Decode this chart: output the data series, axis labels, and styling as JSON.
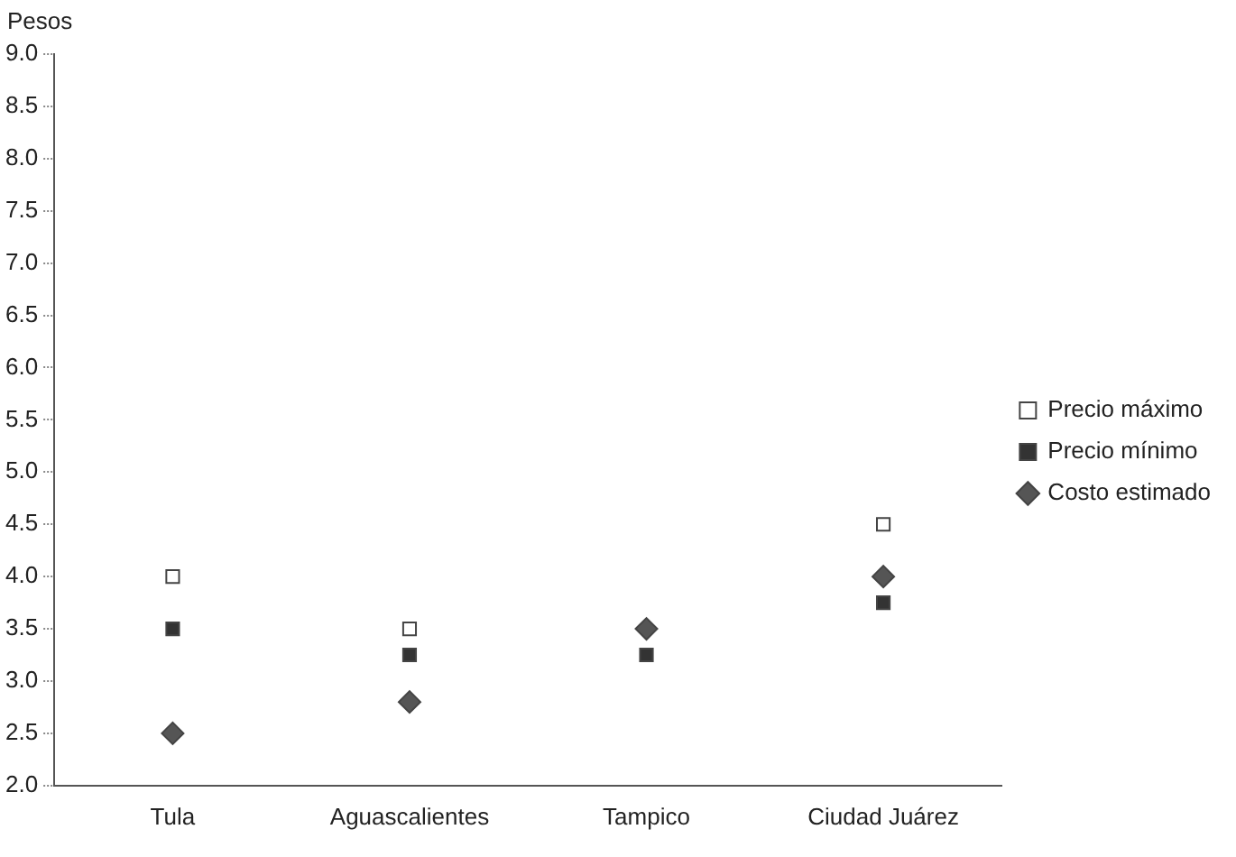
{
  "chart_data": {
    "type": "scatter",
    "ylabel": "Pesos",
    "categories": [
      "Tula",
      "Aguascalientes",
      "Tampico",
      "Ciudad Juárez"
    ],
    "series": [
      {
        "name": "Precio máximo",
        "color": "#ffffff",
        "marker": "square",
        "values": [
          4.0,
          3.5,
          null,
          4.5
        ]
      },
      {
        "name": "Precio mínimo",
        "color": "#333333",
        "marker": "square",
        "values": [
          3.5,
          3.25,
          3.25,
          3.75
        ]
      },
      {
        "name": "Costo estimado",
        "color": "#555555",
        "marker": "diamond",
        "values": [
          2.5,
          2.8,
          3.5,
          4.0
        ]
      }
    ],
    "ylim": [
      2,
      9
    ],
    "yticks": [
      {
        "value": 2,
        "label": "2.0"
      },
      {
        "value": 2.5,
        "label": "2.5"
      },
      {
        "value": 3,
        "label": "3.0"
      },
      {
        "value": 3.5,
        "label": "3.5"
      },
      {
        "value": 4,
        "label": "4.0"
      },
      {
        "value": 4.5,
        "label": "4.5"
      },
      {
        "value": 5,
        "label": "5.0"
      },
      {
        "value": 5.5,
        "label": "5.5"
      },
      {
        "value": 6,
        "label": "6.0"
      },
      {
        "value": 6.5,
        "label": "6.5"
      },
      {
        "value": 7,
        "label": "7.0"
      },
      {
        "value": 7.5,
        "label": "7.5"
      },
      {
        "value": 8,
        "label": "8.0"
      },
      {
        "value": 8.5,
        "label": "8.5"
      },
      {
        "value": 9,
        "label": "9.0"
      }
    ],
    "grid": false,
    "legend": "right"
  }
}
